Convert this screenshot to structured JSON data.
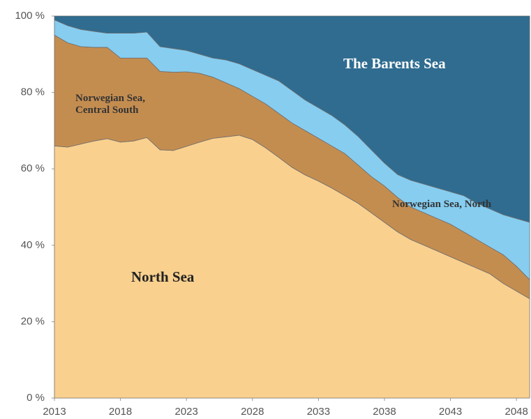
{
  "chart_data": {
    "type": "stacked_area",
    "x": [
      2013,
      2014,
      2015,
      2016,
      2017,
      2018,
      2019,
      2020,
      2021,
      2022,
      2023,
      2024,
      2025,
      2026,
      2027,
      2028,
      2029,
      2030,
      2031,
      2032,
      2033,
      2034,
      2035,
      2036,
      2037,
      2038,
      2039,
      2040,
      2041,
      2042,
      2043,
      2044,
      2045,
      2046,
      2047,
      2048,
      2049
    ],
    "xlim": [
      2013,
      2049.1
    ],
    "xticks": [
      2013,
      2018,
      2023,
      2028,
      2033,
      2038,
      2043,
      2048
    ],
    "ylim": [
      0,
      100
    ],
    "yticks": [
      {
        "value": 0,
        "label": "0 %"
      },
      {
        "value": 20,
        "label": "20 %"
      },
      {
        "value": 40,
        "label": "40 %"
      },
      {
        "value": 60,
        "label": "60 %"
      },
      {
        "value": 80,
        "label": "80 %"
      },
      {
        "value": 100,
        "label": "100 %"
      }
    ],
    "series": [
      {
        "name": "North Sea",
        "color": "#f9d08e",
        "values": [
          66,
          65.7,
          66.5,
          67.3,
          67.9,
          67,
          67.3,
          68.2,
          65,
          64.8,
          65.9,
          67,
          68,
          68.4,
          68.8,
          67.7,
          65.5,
          63,
          60.4,
          58.4,
          56.8,
          55,
          53,
          51,
          48.5,
          46,
          43.5,
          41.5,
          40,
          38.5,
          37,
          35.5,
          34,
          32.5,
          30,
          28,
          26
        ]
      },
      {
        "name": "Norwegian Sea, Central South",
        "color": "#c48d50",
        "values": [
          29,
          27.3,
          25.5,
          24.5,
          23.9,
          22,
          21.7,
          20.8,
          20.5,
          20.5,
          19.5,
          18,
          16,
          14.1,
          12.2,
          11.3,
          11.5,
          11.5,
          11.6,
          11.6,
          11.2,
          11,
          11,
          10,
          9.5,
          9.5,
          9,
          8.5,
          8.5,
          8.5,
          8.5,
          8,
          7.5,
          7,
          7.5,
          6.5,
          5
        ]
      },
      {
        "name": "Norwegian Sea, North",
        "color": "#86cdf0",
        "values": [
          4,
          4.5,
          4.5,
          4.2,
          3.7,
          6.5,
          6.5,
          6.8,
          6.5,
          6.2,
          5.6,
          5,
          5,
          6,
          6.5,
          7,
          7.5,
          8.5,
          8.5,
          8,
          8,
          8,
          7.5,
          7.5,
          7,
          6,
          6,
          7,
          7.5,
          8,
          8.5,
          9.5,
          9.5,
          10,
          10.5,
          12.5,
          15
        ]
      },
      {
        "name": "The Barents Sea",
        "color": "#2f6c90",
        "values": [
          1,
          2.5,
          3.5,
          4,
          4.5,
          4.5,
          4.5,
          4.2,
          8,
          8.5,
          9,
          10,
          11,
          11.5,
          12.5,
          14,
          15.5,
          17,
          19.5,
          22,
          24,
          26,
          28.5,
          31.5,
          35,
          38.5,
          41.5,
          43,
          44,
          45,
          46,
          47,
          49,
          50.5,
          52,
          53,
          54
        ]
      }
    ]
  }
}
